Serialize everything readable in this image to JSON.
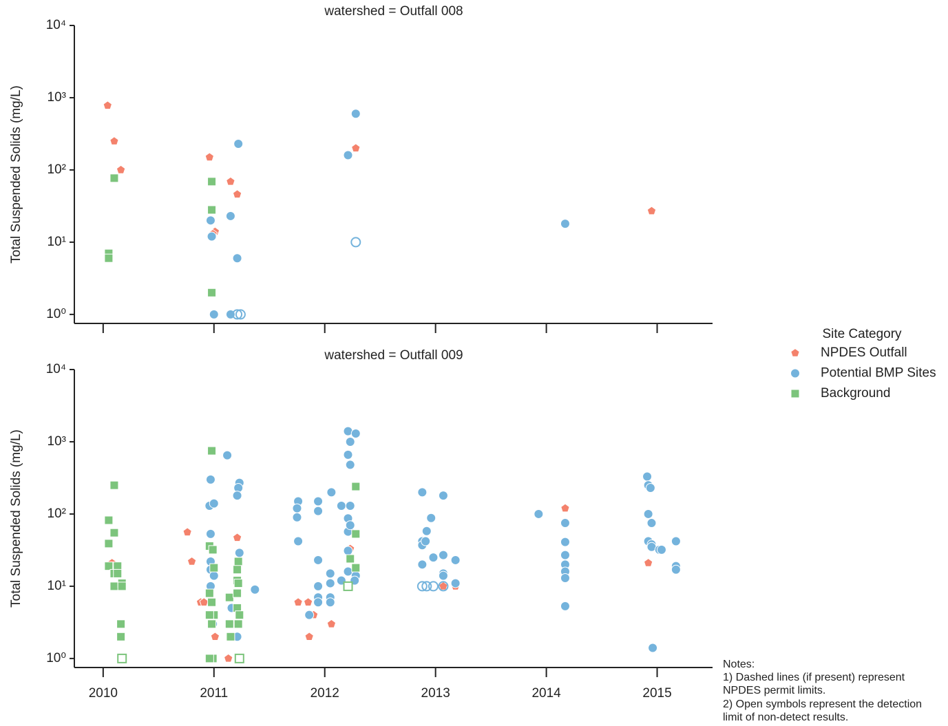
{
  "chart_data": [
    {
      "type": "scatter",
      "title": "watershed = Outfall 008",
      "ylabel": "Total Suspended Solids (mg/L)",
      "xlim": [
        2009.74,
        2015.5
      ],
      "xticks": [
        2010,
        2011,
        2012,
        2013,
        2014,
        2015
      ],
      "xtick_labels": false,
      "ylog": true,
      "ylim": [
        0.75,
        10000
      ],
      "yticks": [
        {
          "value": 1,
          "label": "10⁰"
        },
        {
          "value": 10,
          "label": "10¹"
        },
        {
          "value": 100,
          "label": "10²"
        },
        {
          "value": 1000,
          "label": "10³"
        },
        {
          "value": 10000,
          "label": "10⁴"
        }
      ],
      "series": [
        {
          "name": "NPDES Outfall",
          "color": "#f4826c",
          "marker": "pentagon",
          "open": false,
          "x": [
            2010.04,
            2010.1,
            2010.16,
            2010.96,
            2011.01,
            2010.99,
            2011.15,
            2011.21,
            2012.28,
            2014.95
          ],
          "values": [
            780,
            250,
            100,
            150,
            14,
            13,
            69,
            46,
            200,
            27
          ]
        },
        {
          "name": "Potential BMP Sites",
          "color": "#74b3dc",
          "marker": "circle",
          "open": false,
          "x": [
            2010.97,
            2010.98,
            2011.0,
            2011.15,
            2011.22,
            2011.21,
            2011.15,
            2012.21,
            2012.28,
            2014.17
          ],
          "values": [
            20,
            12,
            1,
            23,
            230,
            6,
            1,
            160,
            600,
            18
          ]
        },
        {
          "name": "Background",
          "color": "#7cc47c",
          "marker": "square",
          "open": false,
          "x": [
            2010.1,
            2010.05,
            2010.05,
            2010.98,
            2010.98,
            2010.98
          ],
          "values": [
            77,
            7,
            6,
            69,
            28,
            2
          ]
        },
        {
          "name": "Potential BMP Sites",
          "color": "#74b3dc",
          "marker": "circle",
          "open": true,
          "x": [
            2011.21,
            2011.24,
            2012.28
          ],
          "values": [
            1,
            1,
            10
          ]
        }
      ]
    },
    {
      "type": "scatter",
      "title": "watershed = Outfall 009",
      "ylabel": "Total Suspended Solids (mg/L)",
      "xlim": [
        2009.74,
        2015.5
      ],
      "xticks": [
        2010,
        2011,
        2012,
        2013,
        2014,
        2015
      ],
      "xtick_labels": true,
      "ylog": true,
      "ylim": [
        0.75,
        10000
      ],
      "yticks": [
        {
          "value": 1,
          "label": "10⁰"
        },
        {
          "value": 10,
          "label": "10¹"
        },
        {
          "value": 100,
          "label": "10²"
        },
        {
          "value": 1000,
          "label": "10³"
        },
        {
          "value": 10000,
          "label": "10⁴"
        }
      ],
      "series": [
        {
          "name": "NPDES Outfall",
          "color": "#f4826c",
          "marker": "pentagon",
          "open": false,
          "x": [
            2010.08,
            2010.76,
            2010.8,
            2010.88,
            2010.91,
            2011.01,
            2011.13,
            2011.21,
            2011.76,
            2011.85,
            2011.86,
            2011.9,
            2012.06,
            2012.23,
            2013.07,
            2013.18,
            2014.17,
            2014.92
          ],
          "values": [
            21,
            56,
            22,
            6,
            6,
            2,
            1,
            47,
            6,
            6,
            2,
            4,
            3,
            33,
            10,
            10,
            120,
            21
          ]
        },
        {
          "name": "Potential BMP Sites",
          "color": "#74b3dc",
          "marker": "circle",
          "open": false,
          "x": [
            2010.97,
            2010.96,
            2011.0,
            2010.97,
            2010.97,
            2010.97,
            2010.97,
            2011.0,
            2011.12,
            2011.23,
            2011.22,
            2011.21,
            2011.23,
            2011.21,
            2011.16,
            2011.21,
            2011.37,
            2010.99,
            2011.76,
            2011.75,
            2011.75,
            2011.76,
            2011.86,
            2011.94,
            2011.94,
            2011.94,
            2011.94,
            2011.94,
            2011.94,
            2012.05,
            2012.05,
            2012.05,
            2012.05,
            2012.06,
            2012.15,
            2012.15,
            2012.21,
            2012.21,
            2012.23,
            2012.28,
            2012.23,
            2012.21,
            2012.23,
            2012.22,
            2012.21,
            2012.23,
            2012.21,
            2012.21,
            2012.28,
            2012.27,
            2012.88,
            2012.88,
            2012.88,
            2012.88,
            2012.92,
            2012.91,
            2012.96,
            2012.98,
            2013.07,
            2013.07,
            2013.07,
            2013.07,
            2013.18,
            2013.18,
            2013.93,
            2014.17,
            2014.17,
            2014.17,
            2014.17,
            2014.17,
            2014.17,
            2014.17,
            2014.91,
            2014.92,
            2014.94,
            2014.92,
            2014.95,
            2014.92,
            2014.95,
            2014.95,
            2015.02,
            2015.04,
            2015.17,
            2015.17,
            2015.17,
            2014.96
          ],
          "values": [
            300,
            130,
            140,
            53,
            22,
            17,
            10,
            14,
            650,
            270,
            230,
            180,
            29,
            12,
            5,
            2,
            9,
            3,
            150,
            120,
            90,
            42,
            4,
            150,
            110,
            23,
            10,
            7,
            6,
            15,
            11,
            7,
            6,
            200,
            130,
            12,
            660,
            1400,
            1000,
            1300,
            480,
            87,
            130,
            60,
            57,
            70,
            31,
            16,
            14,
            12,
            200,
            42,
            37,
            20,
            58,
            42,
            88,
            25,
            180,
            27,
            15,
            14,
            23,
            11,
            100,
            75,
            41,
            27,
            20,
            16,
            13,
            5.3,
            330,
            250,
            230,
            100,
            75,
            42,
            38,
            35,
            32,
            32,
            42,
            19,
            17,
            1.4
          ]
        },
        {
          "name": "Background",
          "color": "#7cc47c",
          "marker": "square",
          "open": false,
          "x": [
            2010.1,
            2010.05,
            2010.1,
            2010.05,
            2010.05,
            2010.13,
            2010.1,
            2010.13,
            2010.1,
            2010.17,
            2010.17,
            2010.16,
            2010.16,
            2010.98,
            2010.96,
            2010.99,
            2011.0,
            2010.96,
            2010.98,
            2011.0,
            2010.96,
            2010.98,
            2010.99,
            2010.96,
            2011.14,
            2011.22,
            2011.21,
            2011.21,
            2011.22,
            2011.21,
            2011.21,
            2011.23,
            2011.22,
            2011.14,
            2011.15,
            2012.28,
            2012.28,
            2012.23,
            2012.28
          ],
          "values": [
            250,
            82,
            55,
            39,
            19,
            19,
            15,
            15,
            10,
            11,
            10,
            3,
            2,
            750,
            36,
            32,
            18,
            8,
            6,
            4,
            4,
            3,
            1,
            1,
            7,
            22,
            17,
            12,
            11,
            8,
            5,
            4,
            3,
            3,
            2,
            240,
            53,
            24,
            18
          ]
        },
        {
          "name": "Potential BMP Sites",
          "color": "#74b3dc",
          "marker": "circle",
          "open": true,
          "x": [
            2012.88,
            2012.92,
            2012.98,
            2013.07
          ],
          "values": [
            10,
            10,
            10,
            10
          ]
        },
        {
          "name": "Background",
          "color": "#7cc47c",
          "marker": "square",
          "open": true,
          "x": [
            2010.17,
            2011.23,
            2012.21
          ],
          "values": [
            1,
            1,
            10
          ]
        }
      ]
    }
  ],
  "legend": {
    "title": "Site Category"
  },
  "notes": [
    "Notes:",
    "1) Dashed lines (if present) represent",
    "NPDES permit limits.",
    "2) Open symbols represent the detection",
    "limit of non-detect results."
  ]
}
